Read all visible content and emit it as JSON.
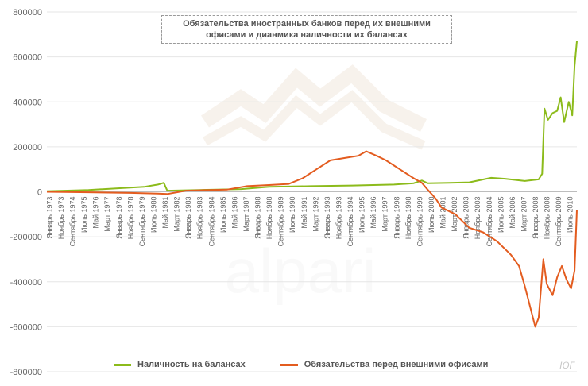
{
  "title_lines": [
    "Обязательства иностранных банков перед их внешними",
    "офисами и дианмика наличности их балансах"
  ],
  "watermark": "alpari",
  "corner_label": "ЮГ",
  "colors": {
    "green": "#8cbb1b",
    "orange": "#e35c1f",
    "axis_text": "#666666",
    "grid": "#e6e6e6"
  },
  "chart_data": {
    "type": "line",
    "title": "Обязательства иностранных банков перед их внешними офисами и дианмика наличности их балансах",
    "ylim": [
      -800000,
      800000
    ],
    "y_ticks": [
      800000,
      600000,
      400000,
      200000,
      0,
      -200000,
      -400000,
      -600000,
      -800000
    ],
    "x_tick_labels": [
      "Январь 1973",
      "Ноябрь 1973",
      "Сентябрь 1974",
      "Июль 1975",
      "Май 1976",
      "Март 1977",
      "Январь 1978",
      "Ноябрь 1978",
      "Сентябрь 1979",
      "Июль 1980",
      "Май 1981",
      "Март 1982",
      "Январь 1983",
      "Ноябрь 1983",
      "Сентябрь 1984",
      "Июль 1985",
      "Май 1986",
      "Март 1987",
      "Январь 1988",
      "Ноябрь 1988",
      "Сентябрь 1989",
      "Июль 1990",
      "Май 1991",
      "Март 1992",
      "Январь 1993",
      "Ноябрь 1993",
      "Сентябрь 1994",
      "Июль 1995",
      "Май 1996",
      "Март 1997",
      "Январь 1998",
      "Ноябрь 1998",
      "Сентябрь 1999",
      "Июль 2000",
      "Май 2001",
      "Март 2002",
      "Январь 2003",
      "Ноябрь 2003",
      "Сентябрь 2004",
      "Июль 2005",
      "Май 2006",
      "Март 2007",
      "Январь 2008",
      "Ноябрь 2008",
      "Сентябрь 2009",
      "Июль 2010"
    ],
    "x_range": [
      "1973-01",
      "2011-03"
    ],
    "grid": "horizontal",
    "legend_position": "bottom",
    "series": [
      {
        "name": "Наличность на балансах",
        "color": "#8cbb1b",
        "points": [
          [
            "1973-01",
            3000
          ],
          [
            "1976-01",
            8000
          ],
          [
            "1978-01",
            15000
          ],
          [
            "1980-01",
            22000
          ],
          [
            "1981-01",
            32000
          ],
          [
            "1981-06",
            40000
          ],
          [
            "1981-09",
            5000
          ],
          [
            "1984-01",
            8000
          ],
          [
            "1987-01",
            12000
          ],
          [
            "1989-01",
            22000
          ],
          [
            "1992-01",
            25000
          ],
          [
            "1995-01",
            28000
          ],
          [
            "1998-01",
            32000
          ],
          [
            "1999-06",
            38000
          ],
          [
            "2000-01",
            50000
          ],
          [
            "2000-06",
            38000
          ],
          [
            "2002-01",
            40000
          ],
          [
            "2003-06",
            42000
          ],
          [
            "2005-01",
            62000
          ],
          [
            "2006-01",
            58000
          ],
          [
            "2007-06",
            48000
          ],
          [
            "2008-06",
            55000
          ],
          [
            "2008-09",
            80000
          ],
          [
            "2008-11",
            370000
          ],
          [
            "2009-02",
            320000
          ],
          [
            "2009-06",
            350000
          ],
          [
            "2009-10",
            360000
          ],
          [
            "2010-01",
            420000
          ],
          [
            "2010-04",
            310000
          ],
          [
            "2010-08",
            400000
          ],
          [
            "2010-11",
            340000
          ],
          [
            "2011-01",
            560000
          ],
          [
            "2011-03",
            670000
          ]
        ]
      },
      {
        "name": "Обязательства перед внешними офисами",
        "color": "#e35c1f",
        "points": [
          [
            "1973-01",
            0
          ],
          [
            "1976-01",
            -2000
          ],
          [
            "1979-01",
            -5000
          ],
          [
            "1981-01",
            -8000
          ],
          [
            "1981-09",
            -10000
          ],
          [
            "1983-01",
            5000
          ],
          [
            "1986-01",
            10000
          ],
          [
            "1987-06",
            25000
          ],
          [
            "1989-01",
            30000
          ],
          [
            "1990-06",
            35000
          ],
          [
            "1991-06",
            60000
          ],
          [
            "1992-06",
            100000
          ],
          [
            "1993-06",
            140000
          ],
          [
            "1994-06",
            150000
          ],
          [
            "1995-06",
            160000
          ],
          [
            "1996-01",
            180000
          ],
          [
            "1996-10",
            160000
          ],
          [
            "1997-06",
            140000
          ],
          [
            "1998-06",
            100000
          ],
          [
            "1999-06",
            60000
          ],
          [
            "2000-01",
            40000
          ],
          [
            "2000-06",
            10000
          ],
          [
            "2001-01",
            -30000
          ],
          [
            "2001-06",
            -70000
          ],
          [
            "2002-06",
            -100000
          ],
          [
            "2003-06",
            -160000
          ],
          [
            "2004-06",
            -180000
          ],
          [
            "2005-06",
            -220000
          ],
          [
            "2006-06",
            -280000
          ],
          [
            "2007-01",
            -330000
          ],
          [
            "2007-06",
            -420000
          ],
          [
            "2008-03",
            -600000
          ],
          [
            "2008-06",
            -560000
          ],
          [
            "2008-10",
            -300000
          ],
          [
            "2009-01",
            -410000
          ],
          [
            "2009-06",
            -460000
          ],
          [
            "2009-10",
            -380000
          ],
          [
            "2010-02",
            -330000
          ],
          [
            "2010-06",
            -390000
          ],
          [
            "2010-10",
            -430000
          ],
          [
            "2011-01",
            -350000
          ],
          [
            "2011-03",
            -80000
          ]
        ]
      }
    ]
  }
}
